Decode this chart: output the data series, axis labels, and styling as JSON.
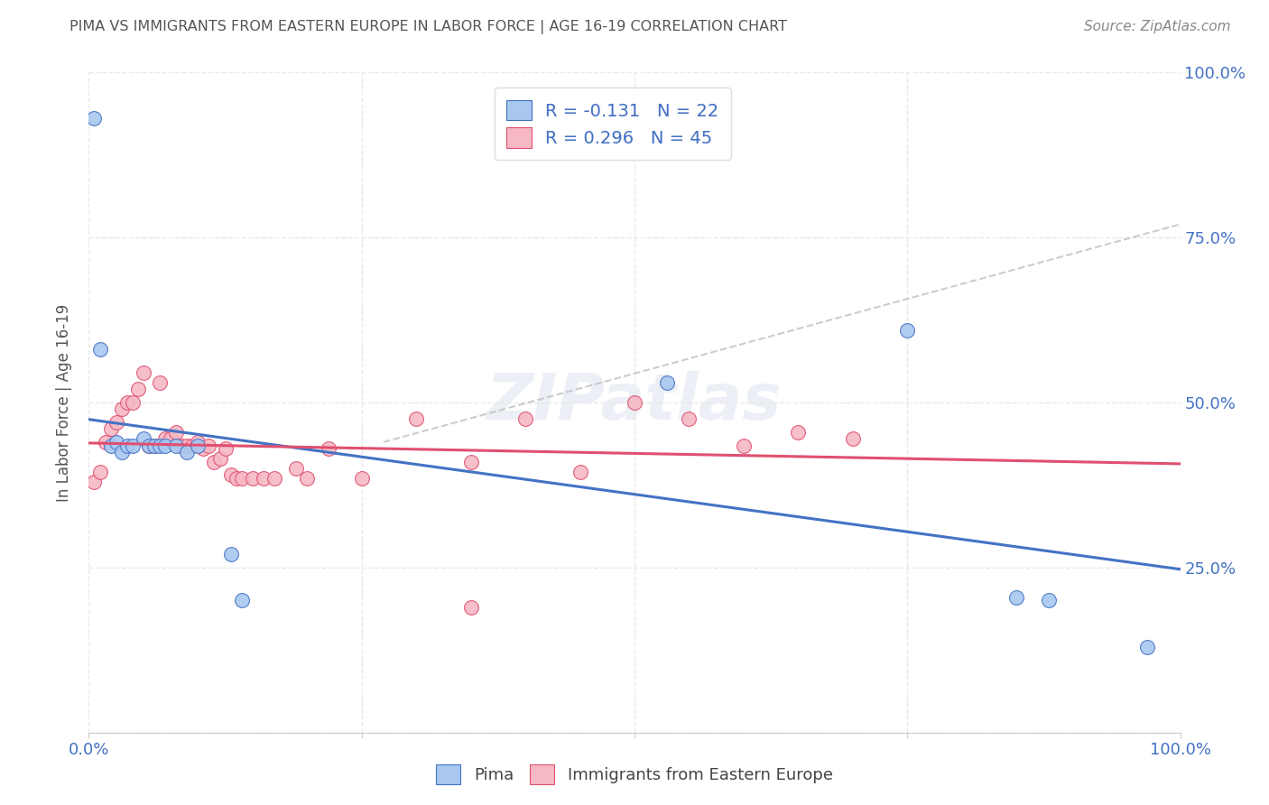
{
  "title": "PIMA VS IMMIGRANTS FROM EASTERN EUROPE IN LABOR FORCE | AGE 16-19 CORRELATION CHART",
  "source": "Source: ZipAtlas.com",
  "ylabel": "In Labor Force | Age 16-19",
  "legend_label1": "Pima",
  "legend_label2": "Immigrants from Eastern Europe",
  "R1": -0.131,
  "N1": 22,
  "R2": 0.296,
  "N2": 45,
  "color_blue": "#a8c8f0",
  "color_pink": "#f5b8c4",
  "line_color_blue": "#4472c4",
  "line_color_pink": "#e05070",
  "line_color_dash": "#c0c0c0",
  "text_color": "#4472c4",
  "title_color": "#555555",
  "source_color": "#888888",
  "background": "#ffffff",
  "grid_color": "#e8e8e8",
  "pima_x": [
    0.005,
    0.01,
    0.02,
    0.025,
    0.03,
    0.035,
    0.04,
    0.05,
    0.055,
    0.06,
    0.065,
    0.07,
    0.08,
    0.09,
    0.1,
    0.13,
    0.14,
    0.53,
    0.75,
    0.85,
    0.88,
    0.97
  ],
  "pima_y": [
    0.93,
    0.58,
    0.435,
    0.44,
    0.425,
    0.435,
    0.435,
    0.445,
    0.435,
    0.435,
    0.435,
    0.435,
    0.435,
    0.425,
    0.435,
    0.27,
    0.2,
    0.53,
    0.61,
    0.205,
    0.2,
    0.13
  ],
  "east_eu_x": [
    0.005,
    0.01,
    0.015,
    0.02,
    0.025,
    0.03,
    0.035,
    0.04,
    0.045,
    0.05,
    0.055,
    0.06,
    0.065,
    0.07,
    0.075,
    0.08,
    0.085,
    0.09,
    0.095,
    0.1,
    0.105,
    0.11,
    0.115,
    0.12,
    0.125,
    0.13,
    0.135,
    0.14,
    0.15,
    0.16,
    0.17,
    0.19,
    0.2,
    0.22,
    0.25,
    0.3,
    0.35,
    0.4,
    0.45,
    0.5,
    0.55,
    0.6,
    0.65,
    0.7,
    0.35
  ],
  "east_eu_y": [
    0.38,
    0.395,
    0.44,
    0.46,
    0.47,
    0.49,
    0.5,
    0.5,
    0.52,
    0.545,
    0.435,
    0.435,
    0.53,
    0.445,
    0.445,
    0.455,
    0.435,
    0.435,
    0.435,
    0.44,
    0.43,
    0.435,
    0.41,
    0.415,
    0.43,
    0.39,
    0.385,
    0.385,
    0.385,
    0.385,
    0.385,
    0.4,
    0.385,
    0.43,
    0.385,
    0.475,
    0.41,
    0.475,
    0.395,
    0.5,
    0.475,
    0.435,
    0.455,
    0.445,
    0.19
  ],
  "xlim": [
    0.0,
    1.0
  ],
  "ylim": [
    0.0,
    1.0
  ],
  "xticks": [
    0.0,
    0.25,
    0.5,
    0.75,
    1.0
  ],
  "yticks": [
    0.0,
    0.25,
    0.5,
    0.75,
    1.0
  ],
  "xtick_labels": [
    "0.0%",
    "",
    "",
    "",
    "100.0%"
  ],
  "ytick_labels_right": [
    "",
    "25.0%",
    "50.0%",
    "75.0%",
    "100.0%"
  ]
}
